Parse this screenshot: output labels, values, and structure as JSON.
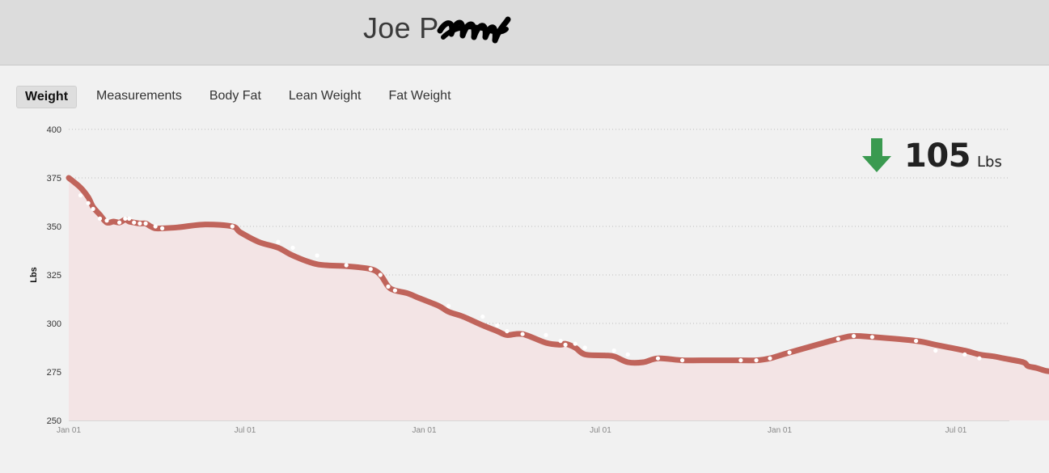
{
  "header": {
    "user_name": "Joe P"
  },
  "tabs": [
    {
      "label": "Weight",
      "active": true
    },
    {
      "label": "Measurements",
      "active": false
    },
    {
      "label": "Body Fat",
      "active": false
    },
    {
      "label": "Lean Weight",
      "active": false
    },
    {
      "label": "Fat Weight",
      "active": false
    }
  ],
  "summary": {
    "direction": "down",
    "value": "105",
    "unit": "Lbs",
    "arrow_color": "#3a9a50"
  },
  "colors": {
    "line": "#c0645b",
    "fill": "#f3e4e5",
    "marker": "#ffffff",
    "grid": "#bdbdbd"
  },
  "chart_data": {
    "type": "area",
    "title": "",
    "xlabel": "",
    "ylabel": "Lbs",
    "ylim": [
      250,
      400
    ],
    "y_ticks": [
      "250",
      "275",
      "300",
      "325",
      "350",
      "375",
      "400"
    ],
    "x_ticks": [
      "Jan 01",
      "Jul 01",
      "Jan 01",
      "Jul 01",
      "Jan 01",
      "Jul 01"
    ],
    "x_tick_days": [
      0,
      181,
      365,
      546,
      730,
      911
    ],
    "grid": true,
    "series": [
      {
        "x": [
          0,
          12,
          20,
          25,
          32,
          39,
          46,
          52,
          58,
          62,
          67,
          73,
          79,
          84,
          89,
          96,
          112,
          140,
          168,
          176,
          195,
          215,
          230,
          255,
          285,
          310,
          320,
          328,
          335,
          348,
          360,
          380,
          390,
          405,
          425,
          440,
          450,
          466,
          490,
          505,
          510,
          520,
          530,
          550,
          560,
          574,
          590,
          605,
          630,
          650,
          690,
          706,
          720,
          740,
          790,
          806,
          825,
          870,
          890,
          920,
          935,
          950,
          960,
          980,
          985,
          994,
          1004,
          1019,
          1034,
          1052,
          1068,
          1085,
          1090,
          1100,
          1109,
          1112,
          1115,
          1118
        ],
        "y": [
          375,
          370,
          365,
          360,
          356,
          352,
          352.5,
          352,
          353.5,
          352.5,
          352,
          351.5,
          351.5,
          350,
          349,
          349,
          349.5,
          351,
          350,
          347,
          342,
          339,
          335,
          330.5,
          329.5,
          328,
          325,
          319,
          317,
          315.5,
          313,
          309,
          306,
          303.5,
          299,
          296,
          294,
          294.5,
          290,
          289,
          289.5,
          287.5,
          284,
          283.5,
          283,
          280,
          280,
          282,
          281,
          281,
          281,
          281,
          282,
          285,
          292,
          293.5,
          293,
          291,
          289,
          286,
          284,
          283,
          282,
          280,
          278,
          277,
          275.5,
          274.5,
          272.5,
          271.5,
          271.5,
          271.5,
          271.5,
          271.5,
          271.5,
          271.5,
          271.5,
          271.5
        ],
        "name": ""
      }
    ],
    "markers": {
      "x": [
        12,
        20,
        25,
        32,
        39,
        52,
        58,
        62,
        67,
        73,
        79,
        89,
        96,
        168,
        215,
        230,
        255,
        285,
        310,
        320,
        328,
        335,
        390,
        425,
        440,
        450,
        466,
        490,
        505,
        510,
        520,
        530,
        560,
        574,
        605,
        630,
        690,
        706,
        720,
        740,
        790,
        806,
        825,
        870,
        890,
        920,
        935
      ],
      "y": [
        366,
        362,
        359,
        354,
        353,
        352,
        354,
        354,
        352,
        351.5,
        351.5,
        350,
        349,
        350,
        342,
        339,
        335,
        330,
        328,
        325,
        319,
        317,
        309,
        303.5,
        299,
        296,
        294.5,
        294,
        291,
        289,
        289.5,
        287.5,
        286,
        284,
        282,
        281,
        281,
        281,
        282,
        285,
        292,
        293.5,
        293,
        291,
        286,
        284,
        282
      ]
    }
  }
}
